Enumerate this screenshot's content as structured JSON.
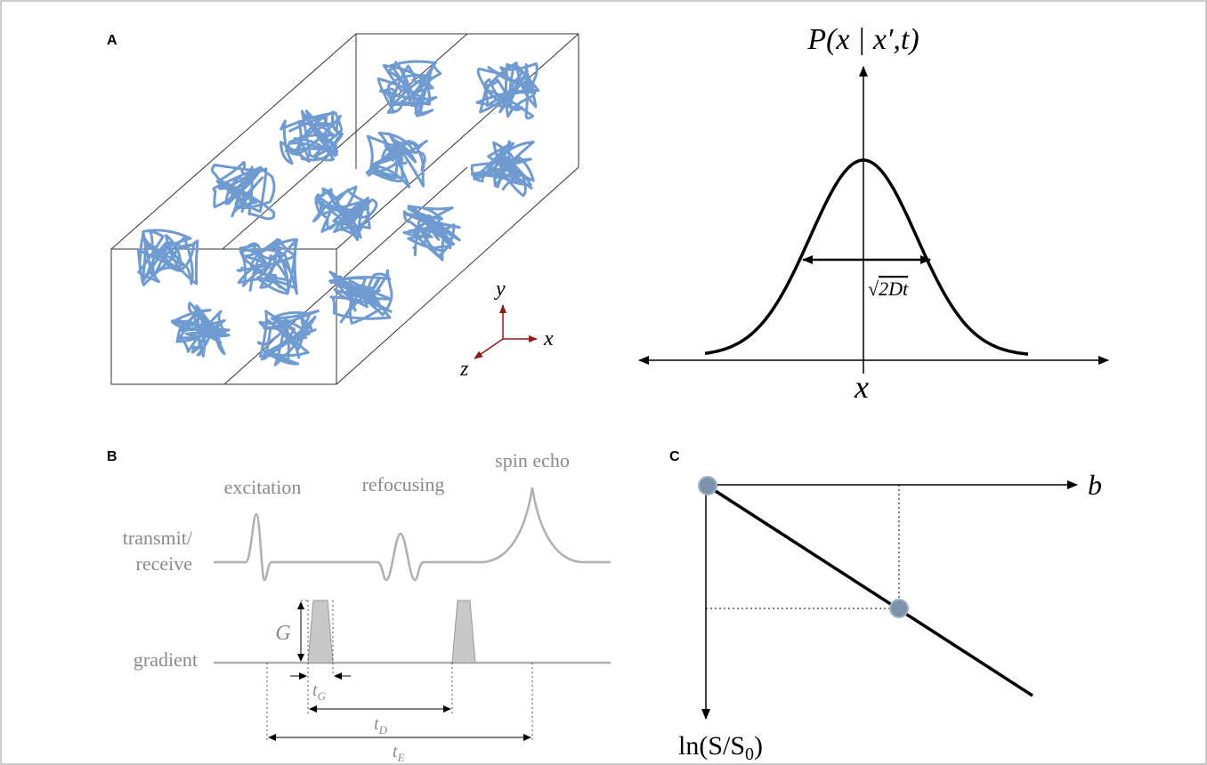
{
  "panel_a": {
    "label": "A",
    "axes": {
      "y": "y",
      "x": "x",
      "z": "z"
    }
  },
  "distribution": {
    "title": "P(x | x′,t)",
    "x_label": "x",
    "width_label": {
      "root": "√",
      "text": "2Dt"
    }
  },
  "panel_b": {
    "label": "B",
    "events": [
      "excitation",
      "refocusing",
      "spin echo"
    ],
    "rows": {
      "transmit": [
        "transmit/",
        "receive"
      ],
      "gradient": "gradient"
    },
    "amplitude": "G",
    "times": [
      {
        "base": "t",
        "sub": "G"
      },
      {
        "base": "t",
        "sub": "D"
      },
      {
        "base": "t",
        "sub": "E"
      }
    ]
  },
  "panel_c": {
    "label": "C",
    "x_label": "b",
    "y_label": {
      "pre": "ln(S/S",
      "sub": "0",
      "post": ")"
    }
  }
}
